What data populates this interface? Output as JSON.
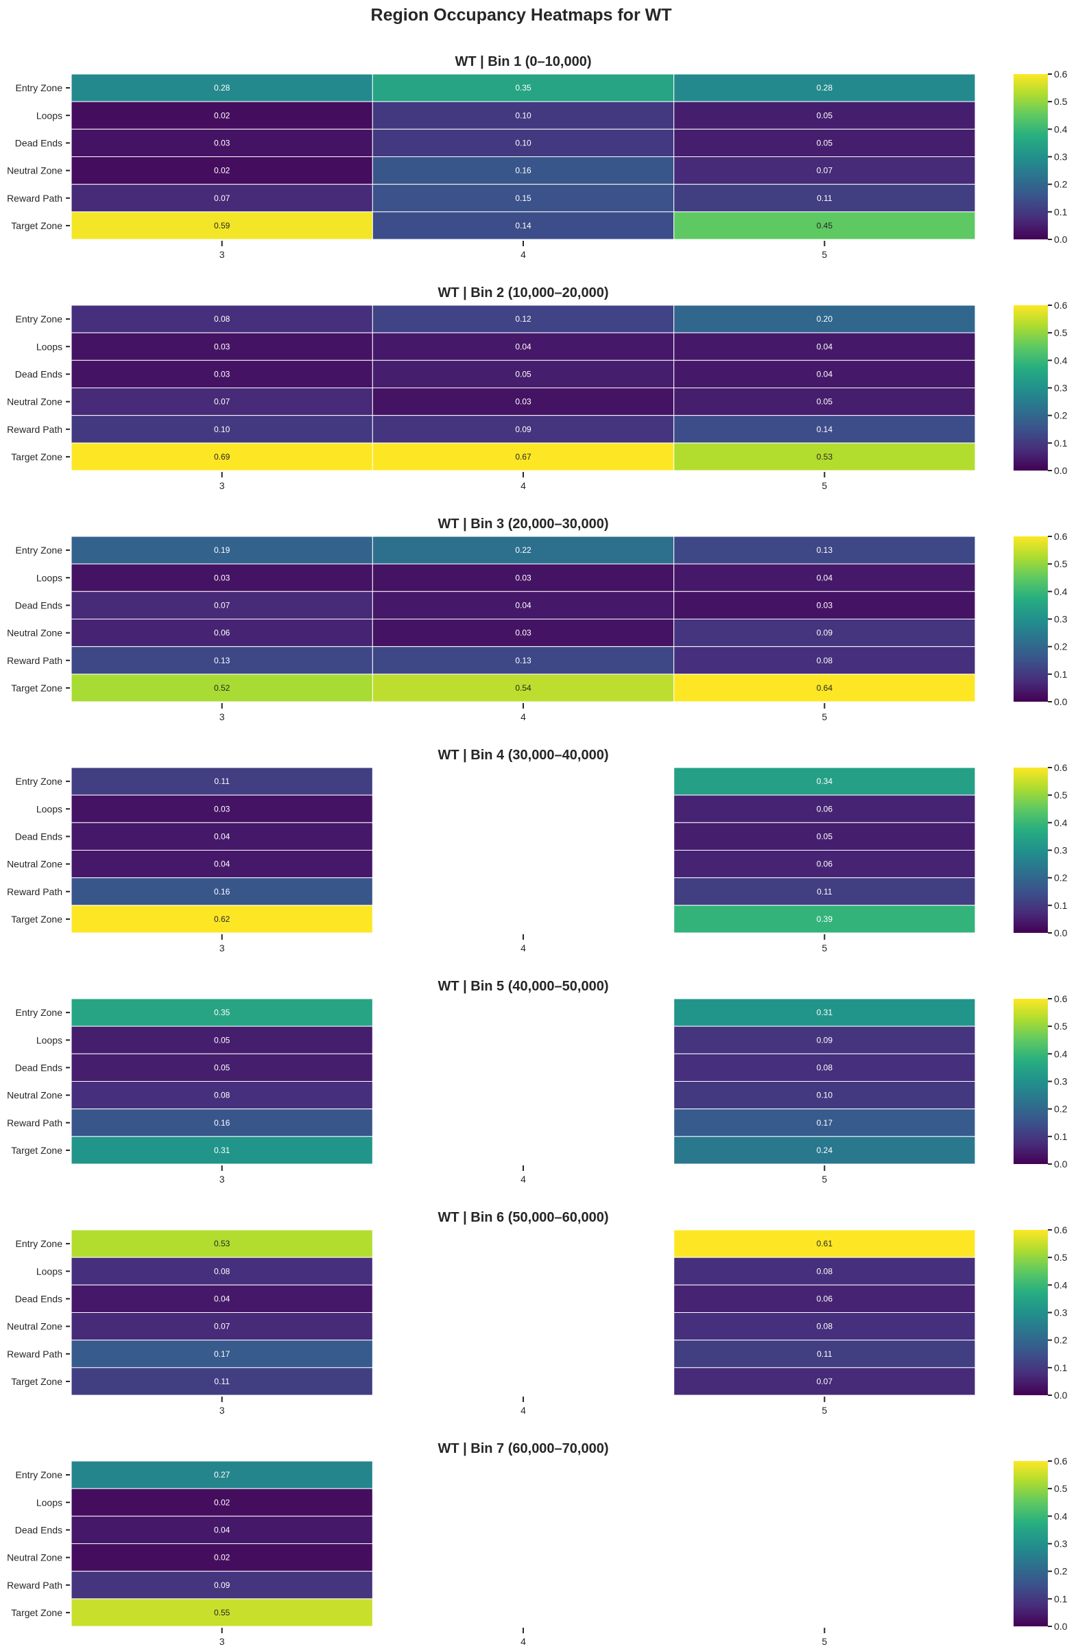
{
  "chart_data": {
    "type": "heatmap",
    "title": "Region Occupancy Heatmaps for WT",
    "colormap": "viridis",
    "vmin": 0.0,
    "vmax": 0.6,
    "colorbar_ticks": [
      "0.0",
      "0.1",
      "0.2",
      "0.3",
      "0.4",
      "0.5",
      "0.6"
    ],
    "rows": [
      "Entry Zone",
      "Loops",
      "Dead Ends",
      "Neutral Zone",
      "Reward Path",
      "Target Zone"
    ],
    "columns": [
      "3",
      "4",
      "5"
    ],
    "panels": [
      {
        "title": "WT | Bin 1 (0–10,000)",
        "values": [
          [
            0.28,
            0.35,
            0.28
          ],
          [
            0.02,
            0.1,
            0.05
          ],
          [
            0.03,
            0.1,
            0.05
          ],
          [
            0.02,
            0.16,
            0.07
          ],
          [
            0.07,
            0.15,
            0.11
          ],
          [
            0.59,
            0.14,
            0.45
          ]
        ]
      },
      {
        "title": "WT | Bin 2 (10,000–20,000)",
        "values": [
          [
            0.08,
            0.12,
            0.2
          ],
          [
            0.03,
            0.04,
            0.04
          ],
          [
            0.03,
            0.05,
            0.04
          ],
          [
            0.07,
            0.03,
            0.05
          ],
          [
            0.1,
            0.09,
            0.14
          ],
          [
            0.69,
            0.67,
            0.53
          ]
        ]
      },
      {
        "title": "WT | Bin 3 (20,000–30,000)",
        "values": [
          [
            0.19,
            0.22,
            0.13
          ],
          [
            0.03,
            0.03,
            0.04
          ],
          [
            0.07,
            0.04,
            0.03
          ],
          [
            0.06,
            0.03,
            0.09
          ],
          [
            0.13,
            0.13,
            0.08
          ],
          [
            0.52,
            0.54,
            0.64
          ]
        ]
      },
      {
        "title": "WT | Bin 4 (30,000–40,000)",
        "values": [
          [
            0.11,
            null,
            0.34
          ],
          [
            0.03,
            null,
            0.06
          ],
          [
            0.04,
            null,
            0.05
          ],
          [
            0.04,
            null,
            0.06
          ],
          [
            0.16,
            null,
            0.11
          ],
          [
            0.62,
            null,
            0.39
          ]
        ]
      },
      {
        "title": "WT | Bin 5 (40,000–50,000)",
        "values": [
          [
            0.35,
            null,
            0.31
          ],
          [
            0.05,
            null,
            0.09
          ],
          [
            0.05,
            null,
            0.08
          ],
          [
            0.08,
            null,
            0.1
          ],
          [
            0.16,
            null,
            0.17
          ],
          [
            0.31,
            null,
            0.24
          ]
        ]
      },
      {
        "title": "WT | Bin 6 (50,000–60,000)",
        "values": [
          [
            0.53,
            null,
            0.61
          ],
          [
            0.08,
            null,
            0.08
          ],
          [
            0.04,
            null,
            0.06
          ],
          [
            0.07,
            null,
            0.08
          ],
          [
            0.17,
            null,
            0.11
          ],
          [
            0.11,
            null,
            0.07
          ]
        ]
      },
      {
        "title": "WT | Bin 7 (60,000–70,000)",
        "values": [
          [
            0.27,
            null,
            null
          ],
          [
            0.02,
            null,
            null
          ],
          [
            0.04,
            null,
            null
          ],
          [
            0.02,
            null,
            null
          ],
          [
            0.09,
            null,
            null
          ],
          [
            0.55,
            null,
            null
          ]
        ]
      }
    ]
  }
}
